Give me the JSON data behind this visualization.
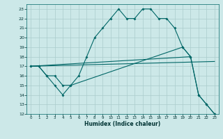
{
  "xlabel": "Humidex (Indice chaleur)",
  "background_color": "#cce8e8",
  "grid_color": "#aacccc",
  "line_color": "#006666",
  "xlim": [
    -0.5,
    23.5
  ],
  "ylim": [
    12,
    23.5
  ],
  "xticks": [
    0,
    1,
    2,
    3,
    4,
    5,
    6,
    7,
    8,
    9,
    10,
    11,
    12,
    13,
    14,
    15,
    16,
    17,
    18,
    19,
    20,
    21,
    22,
    23
  ],
  "yticks": [
    12,
    13,
    14,
    15,
    16,
    17,
    18,
    19,
    20,
    21,
    22,
    23
  ],
  "line1_x": [
    0,
    1,
    2,
    3,
    4,
    5,
    6,
    7,
    8,
    9,
    10,
    11,
    12,
    13,
    14,
    15,
    16,
    17,
    18,
    19,
    20,
    21,
    22,
    23
  ],
  "line1_y": [
    17,
    17,
    16,
    16,
    15,
    15,
    16,
    18,
    20,
    21,
    22,
    23,
    22,
    22,
    23,
    23,
    22,
    22,
    21,
    19,
    18,
    14,
    13,
    12
  ],
  "line2_x": [
    0,
    1,
    2,
    3,
    4,
    5,
    19,
    20,
    21,
    22,
    23
  ],
  "line2_y": [
    17,
    17,
    16,
    15,
    14,
    15,
    19,
    18,
    14,
    13,
    12
  ],
  "line3_x": [
    0,
    20
  ],
  "line3_y": [
    17,
    18
  ],
  "line4_x": [
    0,
    23
  ],
  "line4_y": [
    17,
    17.5
  ]
}
